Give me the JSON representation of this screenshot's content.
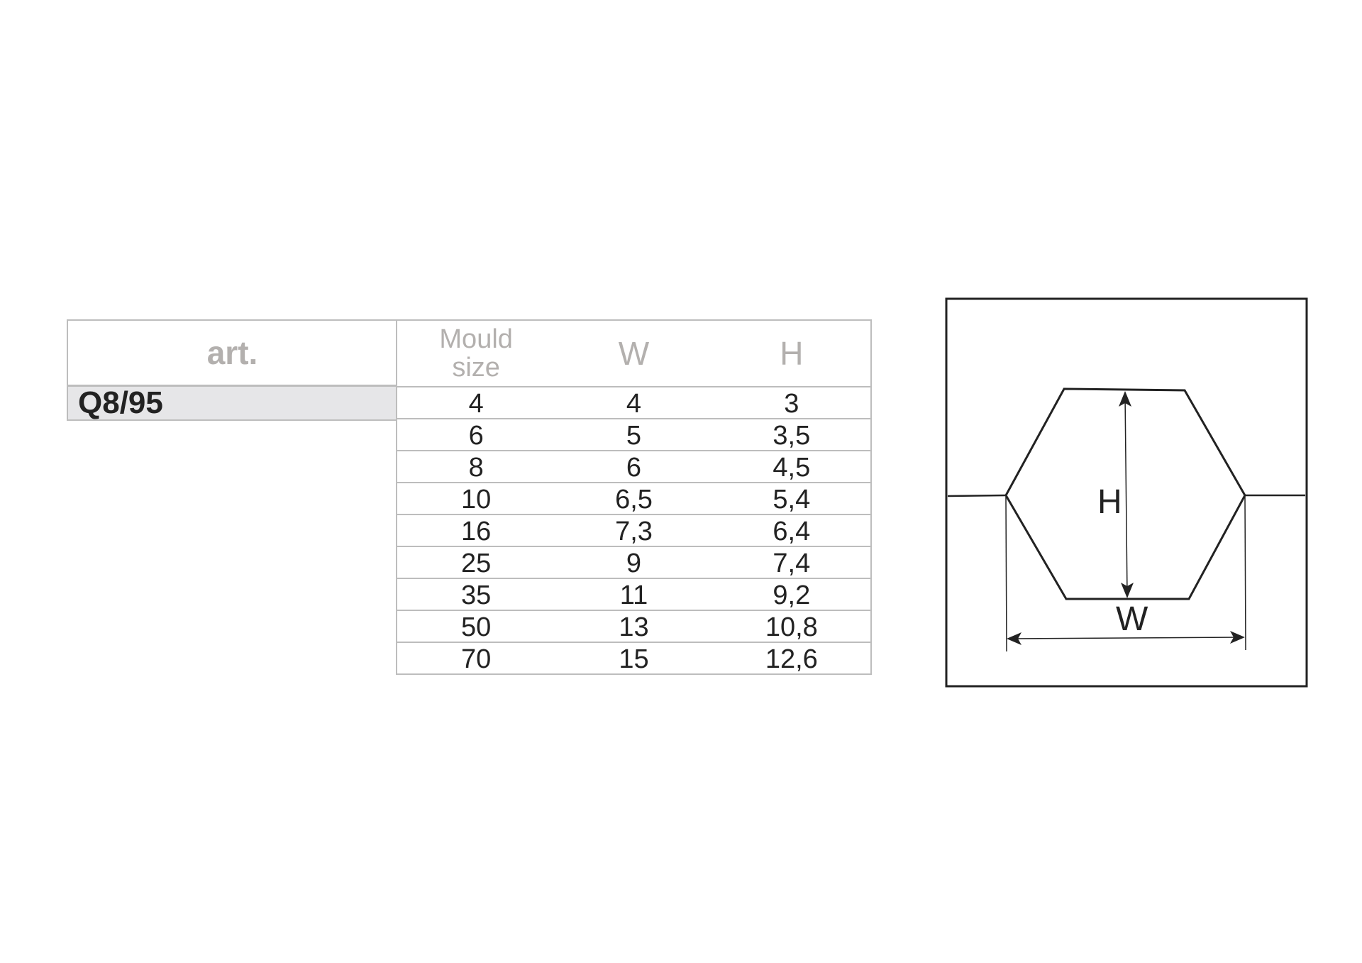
{
  "article": {
    "header": "art.",
    "code": "Q8/95"
  },
  "table": {
    "headers": [
      "Mould\nsize",
      "W",
      "H"
    ],
    "rows": [
      [
        "4",
        "4",
        "3"
      ],
      [
        "6",
        "5",
        "3,5"
      ],
      [
        "8",
        "6",
        "4,5"
      ],
      [
        "10",
        "6,5",
        "5,4"
      ],
      [
        "16",
        "7,3",
        "6,4"
      ],
      [
        "25",
        "9",
        "7,4"
      ],
      [
        "35",
        "11",
        "9,2"
      ],
      [
        "50",
        "13",
        "10,8"
      ],
      [
        "70",
        "15",
        "12,6"
      ]
    ]
  },
  "diagram": {
    "height_label": "H",
    "width_label": "W"
  }
}
